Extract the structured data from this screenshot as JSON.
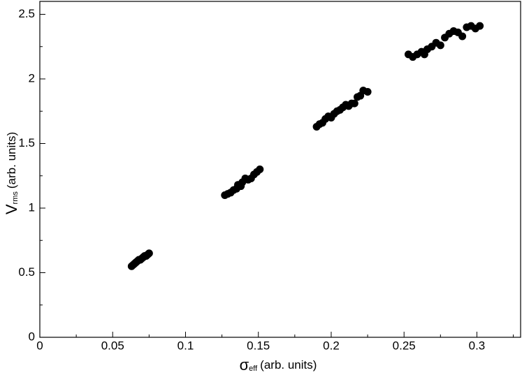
{
  "chart_data": {
    "type": "scatter",
    "xlabel_symbol": "σ",
    "xlabel_sub": "eff",
    "xlabel_unit": "(arb. units)",
    "ylabel_symbol": "V",
    "ylabel_sub": "rms",
    "ylabel_unit": "(arb. units)",
    "color": "#000000",
    "xlim": [
      0,
      0.33
    ],
    "ylim": [
      0,
      2.6
    ],
    "xticks": [
      0,
      0.05,
      0.1,
      0.15,
      0.2,
      0.25,
      0.3
    ],
    "yticks": [
      0,
      0.5,
      1,
      1.5,
      2,
      2.5
    ],
    "xminor_ticks": [
      0.025,
      0.075,
      0.125,
      0.175,
      0.225,
      0.275,
      0.325
    ],
    "yminor_ticks": [
      0.25,
      0.75,
      1.25,
      1.75,
      2.25
    ],
    "x": [
      0.063,
      0.064,
      0.065,
      0.066,
      0.067,
      0.068,
      0.069,
      0.07,
      0.071,
      0.072,
      0.073,
      0.074,
      0.075,
      0.127,
      0.129,
      0.131,
      0.133,
      0.135,
      0.136,
      0.138,
      0.139,
      0.141,
      0.143,
      0.145,
      0.147,
      0.149,
      0.151,
      0.19,
      0.192,
      0.194,
      0.196,
      0.198,
      0.2,
      0.202,
      0.204,
      0.206,
      0.208,
      0.21,
      0.212,
      0.214,
      0.216,
      0.218,
      0.22,
      0.222,
      0.225,
      0.253,
      0.256,
      0.259,
      0.262,
      0.264,
      0.266,
      0.269,
      0.272,
      0.275,
      0.278,
      0.281,
      0.284,
      0.287,
      0.29,
      0.293,
      0.296,
      0.299,
      0.302
    ],
    "values": [
      0.55,
      0.56,
      0.57,
      0.58,
      0.59,
      0.6,
      0.6,
      0.61,
      0.62,
      0.63,
      0.63,
      0.64,
      0.65,
      1.1,
      1.11,
      1.12,
      1.14,
      1.15,
      1.18,
      1.17,
      1.2,
      1.23,
      1.22,
      1.23,
      1.26,
      1.28,
      1.3,
      1.63,
      1.65,
      1.66,
      1.69,
      1.71,
      1.7,
      1.73,
      1.75,
      1.76,
      1.78,
      1.8,
      1.79,
      1.81,
      1.81,
      1.86,
      1.87,
      1.91,
      1.9,
      2.19,
      2.17,
      2.19,
      2.21,
      2.19,
      2.23,
      2.25,
      2.28,
      2.26,
      2.32,
      2.35,
      2.37,
      2.36,
      2.33,
      2.4,
      2.41,
      2.39,
      2.41
    ]
  }
}
